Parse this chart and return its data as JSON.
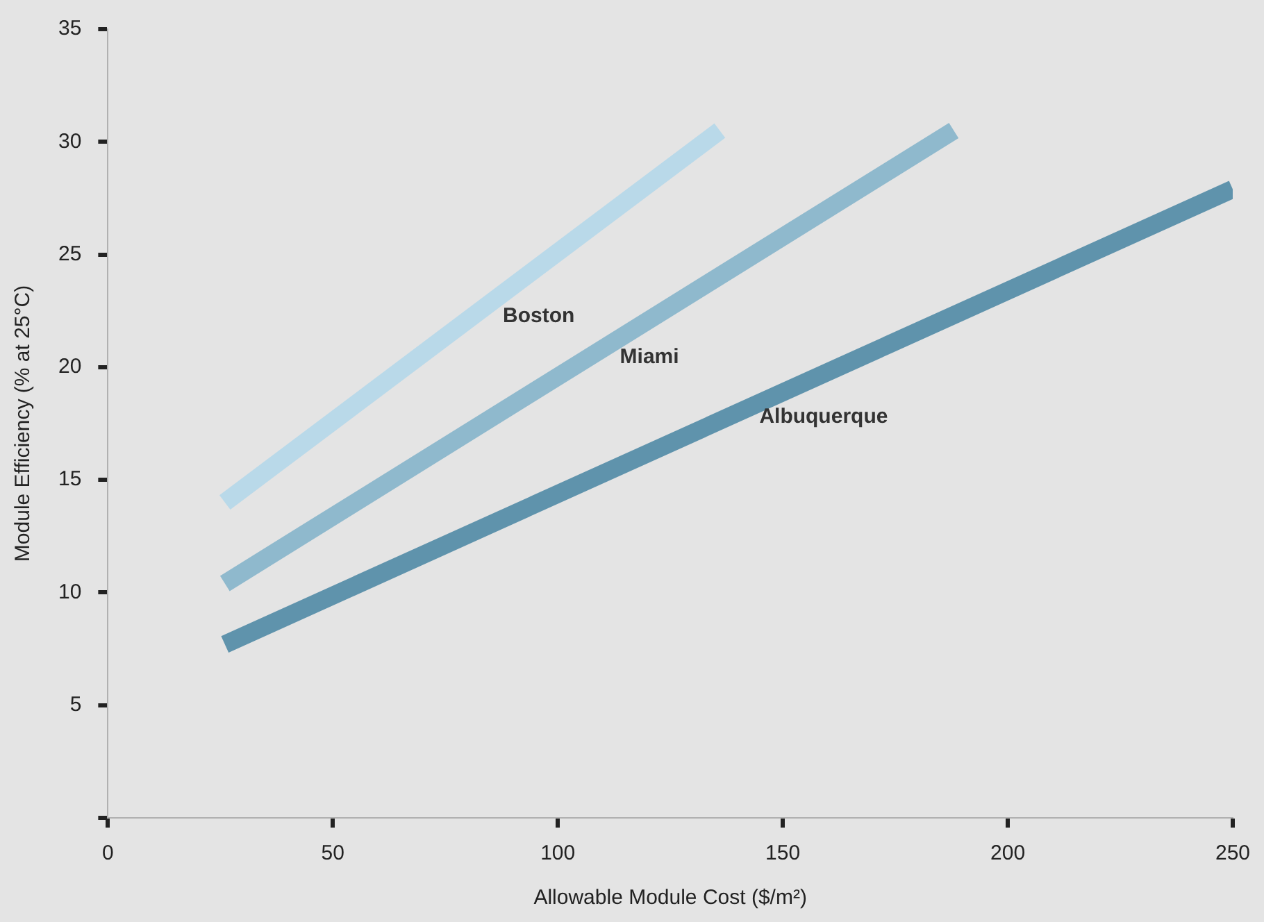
{
  "chart_data": {
    "type": "line",
    "xlabel": "Allowable Module Cost ($/m²)",
    "ylabel": "Module Efficiency (% at 25°C)",
    "xlim": [
      0,
      250
    ],
    "xticks": [
      0,
      50,
      100,
      150,
      200,
      250
    ],
    "ylim": [
      0,
      35
    ],
    "yticks": [
      {
        "value": 0,
        "label": null
      },
      5,
      10,
      15,
      20,
      25,
      30,
      35
    ],
    "grid": false,
    "legend": false,
    "marker": "none",
    "line_style": "solid",
    "series": [
      {
        "name": "Boston",
        "color": "#b9d9e9",
        "x": [
          26,
          136
        ],
        "values": [
          14.0,
          30.5
        ]
      },
      {
        "name": "Miami",
        "color": "#8fb9cd",
        "x": [
          26,
          188
        ],
        "values": [
          10.4,
          30.5
        ]
      },
      {
        "name": "Albuquerque",
        "color": "#5f93ac",
        "x": [
          26,
          250
        ],
        "values": [
          7.7,
          27.9
        ]
      }
    ]
  }
}
